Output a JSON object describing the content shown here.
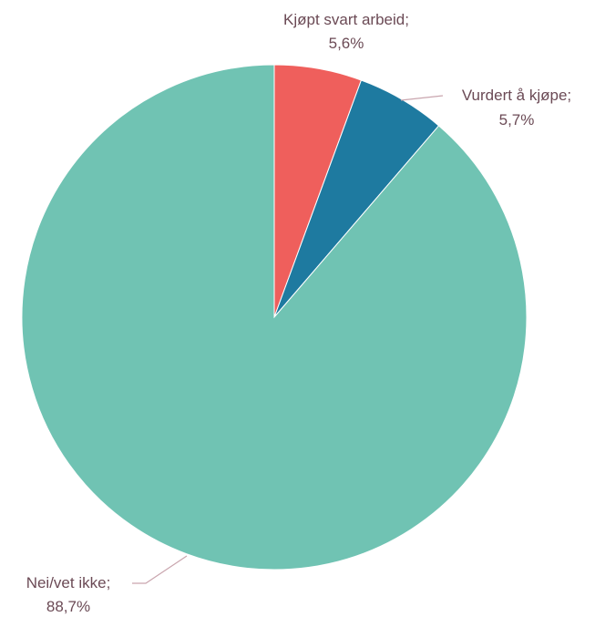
{
  "chart_data": {
    "type": "pie",
    "title": "",
    "start_angle_deg": 0,
    "direction": "clockwise",
    "slices": [
      {
        "label": "Kjøpt svart arbeid;",
        "value_label": "5,6%",
        "value": 5.6,
        "color": "#EF5F5C"
      },
      {
        "label": "Vurdert å kjøpe;",
        "value_label": "5,7%",
        "value": 5.7,
        "color": "#1E7AA0"
      },
      {
        "label": "Nei/vet ikke;",
        "value_label": "88,7%",
        "value": 88.7,
        "color": "#70C3B3"
      }
    ]
  }
}
